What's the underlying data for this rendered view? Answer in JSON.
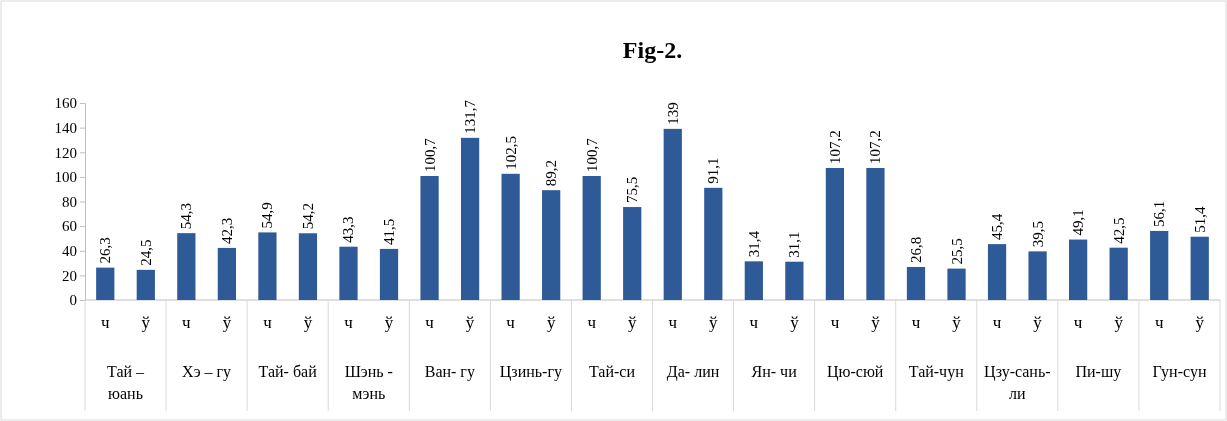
{
  "chart_data": {
    "type": "bar",
    "title": "Fig-2.",
    "categories": [
      "ч",
      "ў",
      "ч",
      "ў",
      "ч",
      "ў",
      "ч",
      "ў",
      "ч",
      "ў",
      "ч",
      "ў",
      "ч",
      "ў",
      "ч",
      "ў",
      "ч",
      "ў",
      "ч",
      "ў",
      "ч",
      "ў",
      "ч",
      "ў",
      "ч",
      "ў",
      "ч",
      "ў"
    ],
    "annotations": [
      "Тай – юань",
      "Хэ – гу",
      "Тай- бай",
      "Шэнь - мэнь",
      "Ван- гу",
      "Цзинь-гу",
      "Тай-си",
      "Да- лин",
      "Ян- чи",
      "Цю-сюй",
      "Тай-чун",
      "Цзу-сань-ли",
      "Пи-шу",
      "Гун-сун"
    ],
    "values": [
      26.3,
      24.5,
      54.3,
      42.3,
      54.9,
      54.2,
      43.3,
      41.5,
      100.7,
      131.7,
      102.5,
      89.2,
      100.7,
      75.5,
      139,
      91.1,
      31.4,
      31.1,
      107.2,
      107.2,
      26.8,
      25.5,
      45.4,
      39.5,
      49.1,
      42.5,
      56.1,
      51.4
    ],
    "value_labels": [
      "26,3",
      "24,5",
      "54,3",
      "42,3",
      "54,9",
      "54,2",
      "43,3",
      "41,5",
      "100,7",
      "131,7",
      "102,5",
      "89,2",
      "100,7",
      "75,5",
      "139",
      "91,1",
      "31,4",
      "31,1",
      "107,2",
      "107,2",
      "26,8",
      "25,5",
      "45,4",
      "39,5",
      "49,1",
      "42,5",
      "56,1",
      "51,4"
    ],
    "color": "#2e5b97",
    "ylim": [
      0,
      160
    ],
    "yticks": [
      0,
      20,
      40,
      60,
      80,
      100,
      120,
      140,
      160
    ],
    "grid": false
  }
}
